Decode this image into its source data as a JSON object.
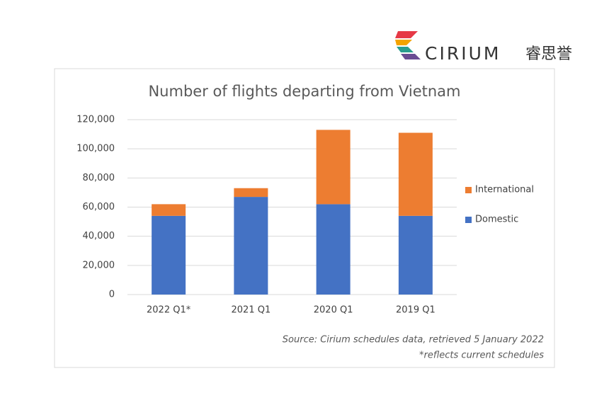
{
  "logo": {
    "name": "CIRIUM",
    "chinese": "睿思誉"
  },
  "chart_data": {
    "type": "stacked_bar",
    "title": "Number of flights departing from Vietnam",
    "categories": [
      "2022 Q1*",
      "2021 Q1",
      "2020 Q1",
      "2019 Q1"
    ],
    "series": [
      {
        "name": "Domestic",
        "color": "#4472c4",
        "values": [
          54000,
          67000,
          62000,
          54000
        ]
      },
      {
        "name": "International",
        "color": "#ed7d31",
        "values": [
          8000,
          6000,
          51000,
          57000
        ]
      }
    ],
    "ylim": [
      0,
      120000
    ],
    "yticks": [
      0,
      {
        "value": 20000,
        "label": "20,000"
      },
      {
        "value": 40000,
        "label": "40,000"
      },
      {
        "value": 60000,
        "label": "60,000"
      },
      {
        "value": 80000,
        "label": "80,000"
      },
      {
        "value": 100000,
        "label": "100,000"
      },
      {
        "value": 120000,
        "label": "120,000"
      }
    ],
    "grid": true,
    "legend": "right",
    "source": "Source:  Cirium schedules data, retrieved 5 January 2022",
    "note": "*reflects current schedules"
  }
}
